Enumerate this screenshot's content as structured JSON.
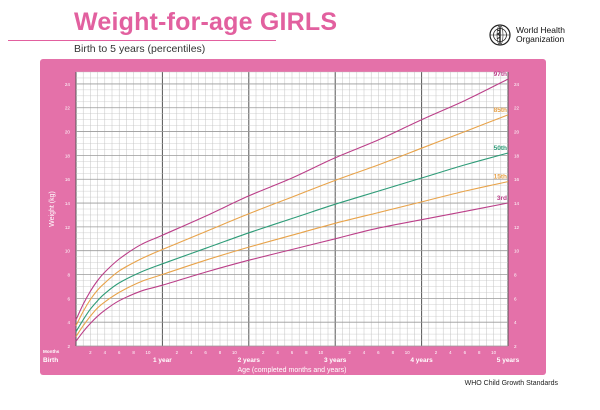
{
  "header": {
    "title": "Weight-for-age GIRLS",
    "subtitle": "Birth to 5 years (percentiles)",
    "org_name": "World Health\nOrganization",
    "logo_icon": "who-emblem-icon"
  },
  "footer": {
    "source": "WHO Child Growth Standards"
  },
  "colors": {
    "title": "#e2609f",
    "panel": "#e471a9",
    "grid_bg": "#ffffff",
    "grid_line": "#c4c4c4",
    "grid_major": "#555555",
    "p97": "#bb3f89",
    "p85": "#e8a34a",
    "p50": "#2e9c78",
    "p15": "#e8a34a",
    "p3": "#bb3f89"
  },
  "chart_data": {
    "type": "line",
    "title": "Weight-for-age GIRLS",
    "subtitle": "Birth to 5 years (percentiles)",
    "xlabel": "Age (completed months and years)",
    "ylabel": "Weight (kg)",
    "xlim": [
      0,
      60
    ],
    "ylim": [
      2,
      25
    ],
    "grid": true,
    "months_label": "Months",
    "x_year_labels": [
      {
        "month": 0,
        "label": "Birth"
      },
      {
        "month": 12,
        "label": "1 year"
      },
      {
        "month": 24,
        "label": "2 years"
      },
      {
        "month": 36,
        "label": "3 years"
      },
      {
        "month": 48,
        "label": "4 years"
      },
      {
        "month": 60,
        "label": "5 years"
      }
    ],
    "x_month_ticks": [
      {
        "month": 2,
        "label": "2"
      },
      {
        "month": 4,
        "label": "4"
      },
      {
        "month": 6,
        "label": "6"
      },
      {
        "month": 8,
        "label": "8"
      },
      {
        "month": 10,
        "label": "10"
      },
      {
        "month": 14,
        "label": "2"
      },
      {
        "month": 16,
        "label": "4"
      },
      {
        "month": 18,
        "label": "6"
      },
      {
        "month": 20,
        "label": "8"
      },
      {
        "month": 22,
        "label": "10"
      },
      {
        "month": 26,
        "label": "2"
      },
      {
        "month": 28,
        "label": "4"
      },
      {
        "month": 30,
        "label": "6"
      },
      {
        "month": 32,
        "label": "8"
      },
      {
        "month": 34,
        "label": "10"
      },
      {
        "month": 38,
        "label": "2"
      },
      {
        "month": 40,
        "label": "4"
      },
      {
        "month": 42,
        "label": "6"
      },
      {
        "month": 44,
        "label": "8"
      },
      {
        "month": 46,
        "label": "10"
      },
      {
        "month": 50,
        "label": "2"
      },
      {
        "month": 52,
        "label": "4"
      },
      {
        "month": 54,
        "label": "6"
      },
      {
        "month": 56,
        "label": "8"
      },
      {
        "month": 58,
        "label": "10"
      }
    ],
    "y_ticks": [
      {
        "v": 2,
        "label": "2"
      },
      {
        "v": 4,
        "label": "4"
      },
      {
        "v": 6,
        "label": "6"
      },
      {
        "v": 8,
        "label": "8"
      },
      {
        "v": 10,
        "label": "10"
      },
      {
        "v": 12,
        "label": "12"
      },
      {
        "v": 14,
        "label": "14"
      },
      {
        "v": 16,
        "label": "16"
      },
      {
        "v": 18,
        "label": "18"
      },
      {
        "v": 20,
        "label": "20"
      },
      {
        "v": 22,
        "label": "22"
      },
      {
        "v": 24,
        "label": "24"
      }
    ],
    "x": [
      0,
      1,
      2,
      3,
      4,
      6,
      9,
      12,
      18,
      24,
      30,
      36,
      42,
      48,
      54,
      60
    ],
    "series": [
      {
        "name": "97th",
        "color_key": "p97",
        "values": [
          4.2,
          5.5,
          6.6,
          7.5,
          8.2,
          9.3,
          10.5,
          11.3,
          12.9,
          14.6,
          16.1,
          17.8,
          19.3,
          21.0,
          22.6,
          24.4
        ]
      },
      {
        "name": "85th",
        "color_key": "p85",
        "values": [
          3.7,
          4.9,
          5.9,
          6.7,
          7.3,
          8.3,
          9.3,
          10.1,
          11.6,
          13.1,
          14.5,
          15.9,
          17.2,
          18.6,
          20.0,
          21.4
        ]
      },
      {
        "name": "50th",
        "color_key": "p50",
        "values": [
          3.2,
          4.2,
          5.1,
          5.8,
          6.4,
          7.3,
          8.2,
          8.9,
          10.2,
          11.5,
          12.7,
          13.9,
          15.0,
          16.1,
          17.2,
          18.2
        ]
      },
      {
        "name": "15th",
        "color_key": "p15",
        "values": [
          2.8,
          3.7,
          4.5,
          5.2,
          5.7,
          6.5,
          7.4,
          8.0,
          9.2,
          10.3,
          11.3,
          12.3,
          13.2,
          14.1,
          15.0,
          15.8
        ]
      },
      {
        "name": "3rd",
        "color_key": "p3",
        "values": [
          2.4,
          3.2,
          3.9,
          4.5,
          5.0,
          5.8,
          6.6,
          7.1,
          8.2,
          9.2,
          10.1,
          11.0,
          11.9,
          12.6,
          13.3,
          14.0
        ]
      }
    ]
  }
}
